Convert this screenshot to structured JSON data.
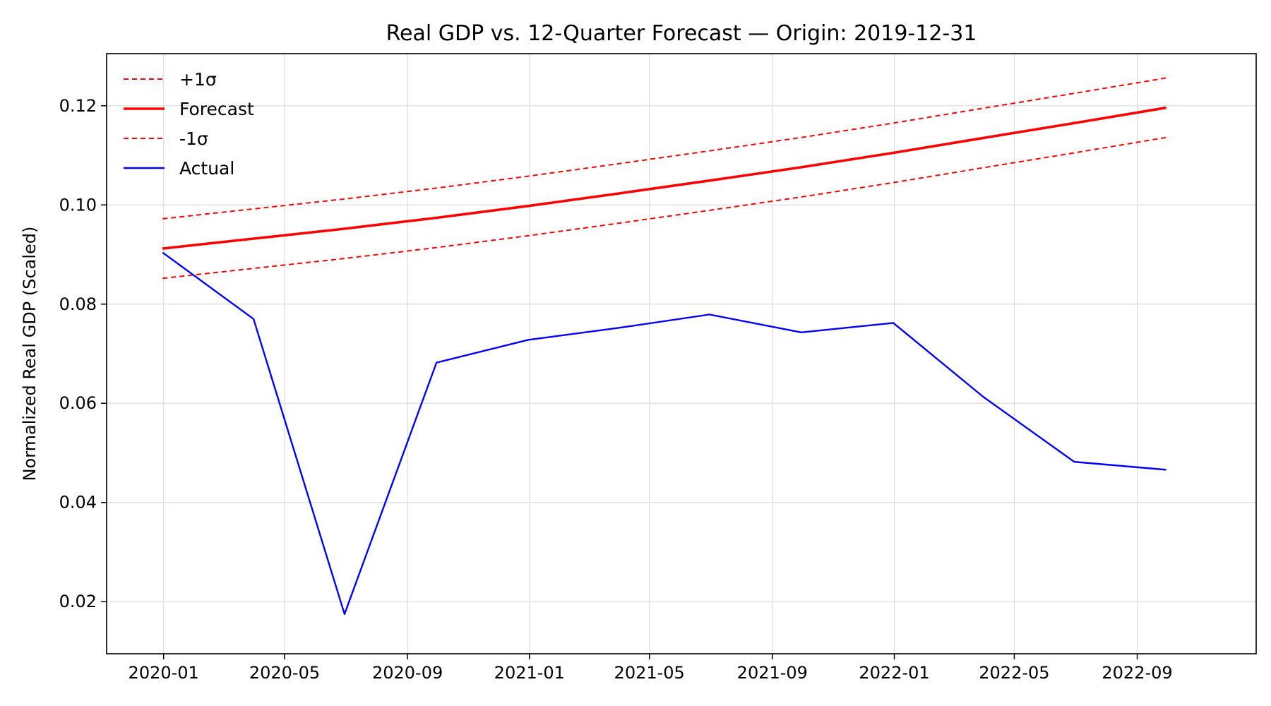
{
  "chart_data": {
    "type": "line",
    "title": "Real GDP vs. 12-Quarter Forecast — Origin: 2019-12-31",
    "xlabel": "",
    "ylabel": "Normalized Real GDP (Scaled)",
    "xlim": [
      "2019-11-05",
      "2022-12-29"
    ],
    "ylim": [
      0.0095,
      0.1305
    ],
    "grid": true,
    "legend_position": "top-left",
    "x_ticks": [
      "2020-01",
      "2020-05",
      "2020-09",
      "2021-01",
      "2021-05",
      "2021-09",
      "2022-01",
      "2022-05",
      "2022-09"
    ],
    "y_ticks": [
      "0.02",
      "0.04",
      "0.06",
      "0.08",
      "0.10",
      "0.12"
    ],
    "x": [
      "2019-12-31",
      "2020-03-31",
      "2020-06-30",
      "2020-09-30",
      "2020-12-31",
      "2021-03-31",
      "2021-06-30",
      "2021-09-30",
      "2021-12-31",
      "2022-03-31",
      "2022-06-30",
      "2022-09-30"
    ],
    "series": [
      {
        "name": "+1σ",
        "color": "#ff0000",
        "style": "dashed",
        "values": [
          0.0972,
          0.0992,
          0.1012,
          0.1034,
          0.1058,
          0.1083,
          0.1109,
          0.1136,
          0.1165,
          0.1195,
          0.1225,
          0.1256
        ]
      },
      {
        "name": "Forecast",
        "color": "#ff0000",
        "style": "solid-thick",
        "values": [
          0.0912,
          0.0932,
          0.0952,
          0.0974,
          0.0998,
          0.1023,
          0.1049,
          0.1076,
          0.1105,
          0.1135,
          0.1165,
          0.1196
        ]
      },
      {
        "name": "-1σ",
        "color": "#ff0000",
        "style": "dashed",
        "values": [
          0.0852,
          0.0872,
          0.0892,
          0.0914,
          0.0938,
          0.0963,
          0.0989,
          0.1016,
          0.1045,
          0.1075,
          0.1105,
          0.1136
        ]
      },
      {
        "name": "Actual",
        "color": "#0000ff",
        "style": "solid",
        "values": [
          0.0904,
          0.077,
          0.0175,
          0.0682,
          0.0728,
          0.0752,
          0.0779,
          0.0743,
          0.0762,
          0.0613,
          0.0482,
          0.0466
        ]
      }
    ]
  }
}
